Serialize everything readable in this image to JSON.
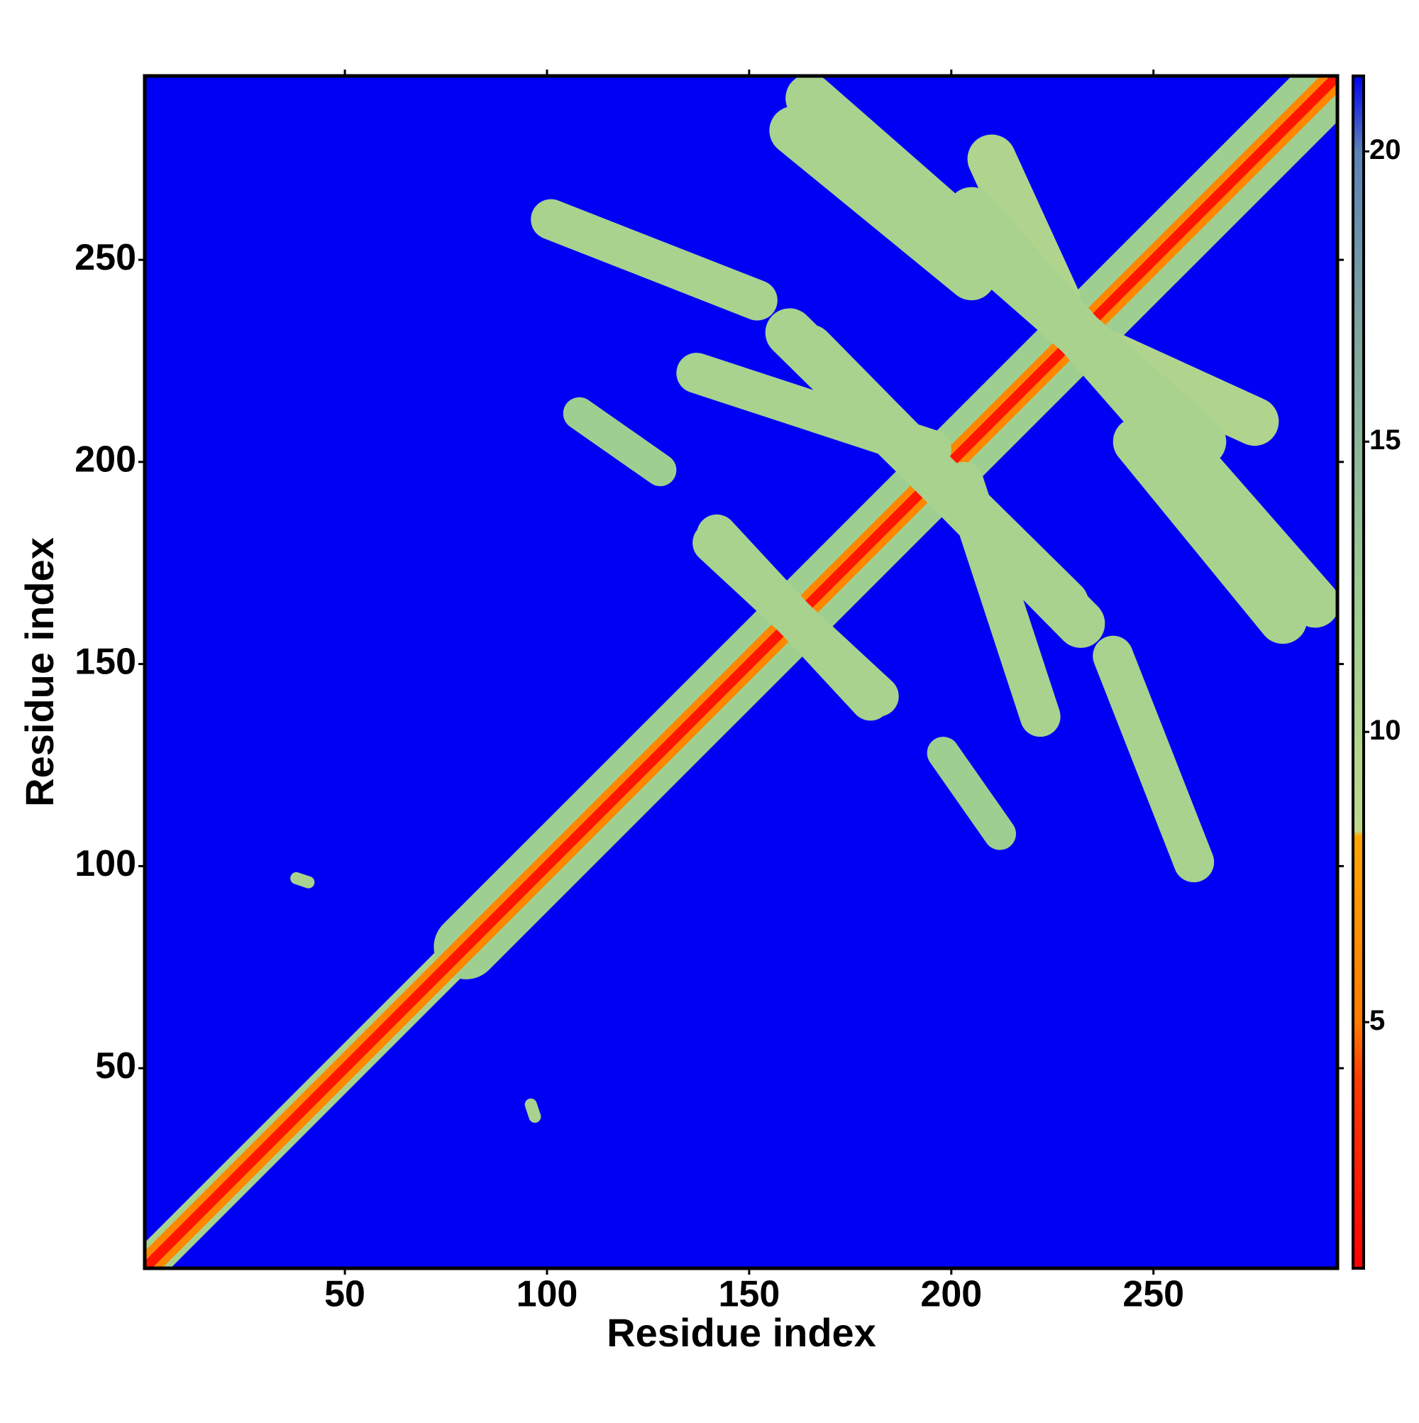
{
  "chart_data": {
    "type": "heatmap",
    "xlabel": "Residue index",
    "ylabel": "Residue index",
    "xlim": [
      0.5,
      295.5
    ],
    "ylim": [
      0.5,
      295.5
    ],
    "xticks": [
      50,
      100,
      150,
      200,
      250
    ],
    "yticks": [
      50,
      100,
      150,
      200,
      250
    ],
    "background": "#0000f5",
    "symmetric": true,
    "colorbar": {
      "clim": [
        0.76,
        21.3
      ],
      "ticks": [
        5,
        10,
        15,
        20
      ],
      "stops": [
        [
          0.76,
          "#ff0000"
        ],
        [
          4,
          "#ff3a00"
        ],
        [
          5,
          "#ff7a00"
        ],
        [
          8.2,
          "#ffa500"
        ],
        [
          8.3,
          "#bfd98a"
        ],
        [
          12,
          "#9fcf90"
        ],
        [
          17,
          "#7fa3a0"
        ],
        [
          20,
          "#5a82b8"
        ],
        [
          21.3,
          "#0000f5"
        ]
      ]
    },
    "regions": [
      {
        "x": [
          1,
          80
        ],
        "y": [
          1,
          80
        ],
        "width": 9,
        "value": 11
      },
      {
        "x": [
          80,
          295
        ],
        "y": [
          80,
          295
        ],
        "width": 16,
        "value": 12
      },
      {
        "x": [
          1,
          295
        ],
        "y": [
          1,
          295
        ],
        "width": 6,
        "value": 6
      },
      {
        "x": [
          1,
          295
        ],
        "y": [
          1,
          295
        ],
        "width": 2.5,
        "value": 2
      },
      {
        "x": [
          101,
          152
        ],
        "y": [
          260,
          240
        ],
        "width": 10,
        "value": 11
      },
      {
        "x": [
          137,
          195
        ],
        "y": [
          222,
          203
        ],
        "width": 10,
        "value": 11
      },
      {
        "x": [
          108,
          128
        ],
        "y": [
          212,
          198
        ],
        "width": 8,
        "value": 12
      },
      {
        "x": [
          161,
          205
        ],
        "y": [
          282,
          246
        ],
        "width": 12,
        "value": 11
      },
      {
        "x": [
          210,
          226
        ],
        "y": [
          275,
          240
        ],
        "width": 12,
        "value": 10
      },
      {
        "x": [
          141,
          182
        ],
        "y": [
          180,
          142
        ],
        "width": 10,
        "value": 11
      },
      {
        "x": [
          165,
          232
        ],
        "y": [
          228,
          160
        ],
        "width": 12,
        "value": 11
      },
      {
        "x": [
          205,
          290
        ],
        "y": [
          262,
          165
        ],
        "width": 12,
        "value": 11
      },
      {
        "x": [
          38,
          41
        ],
        "y": [
          97,
          96
        ],
        "width": 3,
        "value": 11
      }
    ]
  }
}
